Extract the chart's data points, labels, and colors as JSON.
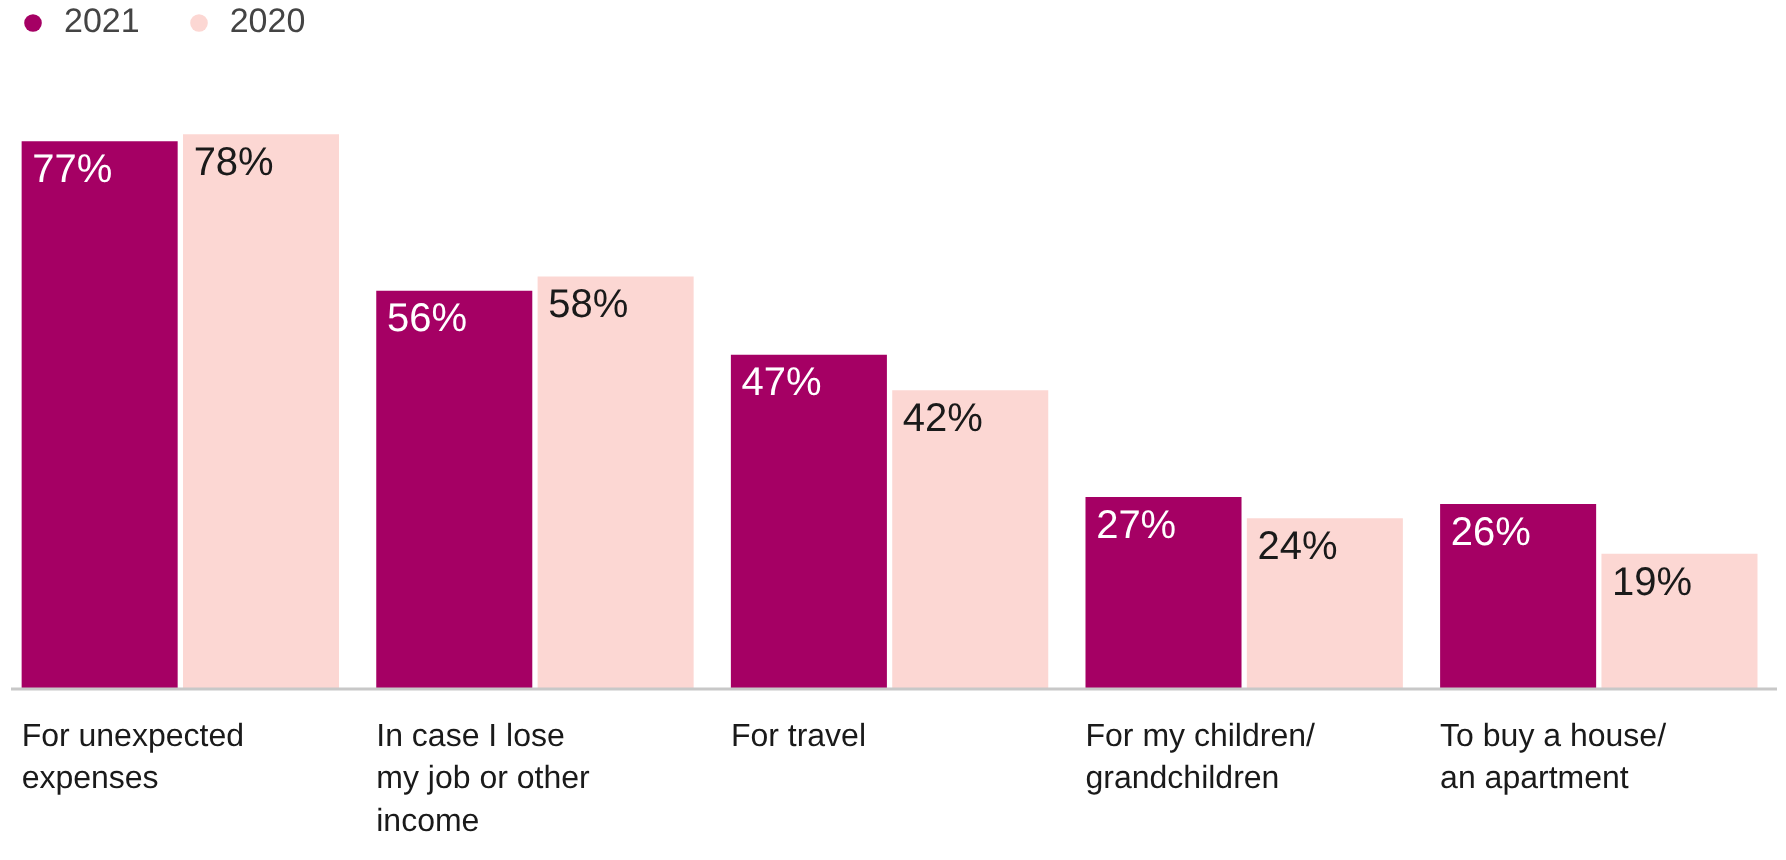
{
  "chart_data": {
    "type": "bar",
    "categories": [
      "For unexpected expenses",
      "In case I lose my job or other income",
      "For travel",
      "For my children/ grandchildren",
      "To buy a house/ an apartment"
    ],
    "series": [
      {
        "name": "2021",
        "color": "#a50064",
        "values": [
          77,
          56,
          47,
          27,
          26
        ],
        "value_labels": [
          "77%",
          "56%",
          "47%",
          "27%",
          "26%"
        ]
      },
      {
        "name": "2020",
        "color": "#fcd7d3",
        "values": [
          78,
          58,
          42,
          24,
          19
        ],
        "value_labels": [
          "78%",
          "58%",
          "42%",
          "24%",
          "19%"
        ]
      }
    ],
    "legend": "top left"
  }
}
